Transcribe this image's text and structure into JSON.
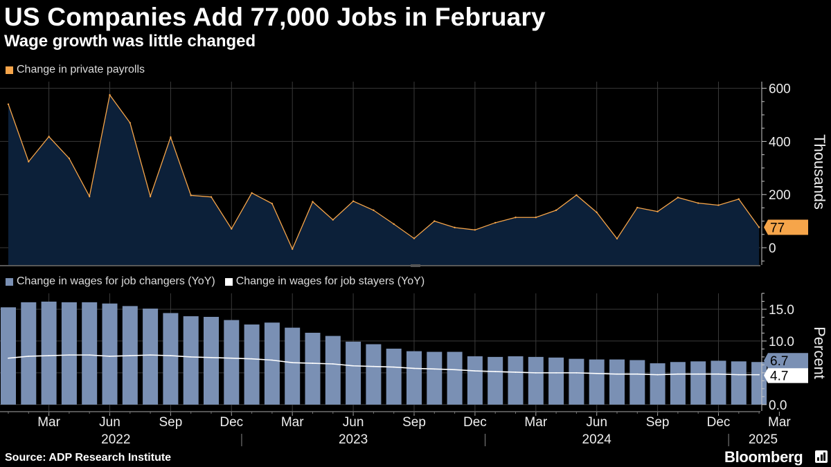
{
  "header": {
    "title": "US Companies Add 77,000 Jobs in February",
    "subtitle": "Wage growth was little changed"
  },
  "footer": {
    "source": "Source: ADP Research Institute",
    "brand": "Bloomberg"
  },
  "colors": {
    "payroll_line": "#f6a54a",
    "payroll_fill": "#0c2039",
    "changers_bar": "#7a90b4",
    "stayers_line": "#ffffff",
    "grid": "#3a3a3a"
  },
  "chart_data": [
    {
      "type": "area",
      "legend": [
        "Change in private payrolls"
      ],
      "ylabel": "Thousands",
      "ylim": [
        -65,
        625
      ],
      "yticks": [
        0,
        200,
        400,
        600
      ],
      "last_value_label": "77",
      "series": [
        {
          "name": "Change in private payrolls",
          "x": [
            "2022-01",
            "2022-02",
            "2022-03",
            "2022-04",
            "2022-05",
            "2022-06",
            "2022-07",
            "2022-08",
            "2022-09",
            "2022-10",
            "2022-11",
            "2022-12",
            "2023-01",
            "2023-02",
            "2023-03",
            "2023-04",
            "2023-05",
            "2023-06",
            "2023-07",
            "2023-08",
            "2023-09",
            "2023-10",
            "2023-11",
            "2023-12",
            "2024-01",
            "2024-02",
            "2024-03",
            "2024-04",
            "2024-05",
            "2024-06",
            "2024-07",
            "2024-08",
            "2024-09",
            "2024-10",
            "2024-11",
            "2024-12",
            "2025-01",
            "2025-02"
          ],
          "values": [
            540,
            324,
            418,
            336,
            193,
            575,
            470,
            193,
            416,
            197,
            191,
            71,
            206,
            166,
            -5,
            173,
            105,
            175,
            141,
            89,
            35,
            100,
            76,
            67,
            94,
            114,
            114,
            141,
            198,
            133,
            34,
            151,
            136,
            189,
            168,
            160,
            183,
            77
          ]
        }
      ]
    },
    {
      "type": "bar",
      "legend": [
        "Change in wages for job changers (YoY)",
        "Change in wages for job stayers (YoY)"
      ],
      "ylabel": "Percent",
      "ylim": [
        -1,
        17.5
      ],
      "yticks": [
        "0.0",
        "5.0",
        "10.0",
        "15.0"
      ],
      "last_value_labels": [
        "6.7",
        "4.7"
      ],
      "series": [
        {
          "name": "Change in wages for job changers (YoY)",
          "style": "bar",
          "values": [
            15.3,
            16.1,
            16.2,
            16.1,
            16.1,
            15.9,
            15.5,
            15.1,
            14.4,
            13.9,
            13.8,
            13.3,
            12.6,
            12.9,
            12.1,
            11.3,
            10.8,
            9.9,
            9.5,
            8.8,
            8.4,
            8.3,
            8.3,
            7.6,
            7.5,
            7.6,
            7.5,
            7.4,
            7.2,
            7.1,
            7.1,
            7.0,
            6.5,
            6.7,
            6.8,
            6.9,
            6.8,
            6.7
          ]
        },
        {
          "name": "Change in wages for job stayers (YoY)",
          "style": "line",
          "values": [
            7.3,
            7.6,
            7.7,
            7.8,
            7.8,
            7.6,
            7.7,
            7.8,
            7.7,
            7.5,
            7.4,
            7.3,
            7.2,
            7.0,
            6.6,
            6.5,
            6.4,
            6.1,
            6.0,
            5.9,
            5.7,
            5.6,
            5.5,
            5.3,
            5.2,
            5.1,
            5.0,
            5.0,
            5.0,
            4.9,
            4.8,
            4.8,
            4.7,
            4.8,
            4.8,
            4.8,
            4.7,
            4.7
          ]
        }
      ]
    }
  ],
  "x_axis": {
    "month_ticks": [
      {
        "label": "Mar",
        "index": 2
      },
      {
        "label": "Jun",
        "index": 5
      },
      {
        "label": "Sep",
        "index": 8
      },
      {
        "label": "Dec",
        "index": 11
      },
      {
        "label": "Mar",
        "index": 14
      },
      {
        "label": "Jun",
        "index": 17
      },
      {
        "label": "Sep",
        "index": 20
      },
      {
        "label": "Dec",
        "index": 23
      },
      {
        "label": "Mar",
        "index": 26
      },
      {
        "label": "Jun",
        "index": 29
      },
      {
        "label": "Sep",
        "index": 32
      },
      {
        "label": "Dec",
        "index": 35
      },
      {
        "label": "Mar",
        "index": 38
      }
    ],
    "years": [
      {
        "label": "2022",
        "center_index": 5.3
      },
      {
        "label": "2023",
        "center_index": 17.0
      },
      {
        "label": "2024",
        "center_index": 29.0
      },
      {
        "label": "2025",
        "center_index": 37.2
      }
    ],
    "year_dividers": [
      11.5,
      23.5,
      35.5
    ]
  }
}
